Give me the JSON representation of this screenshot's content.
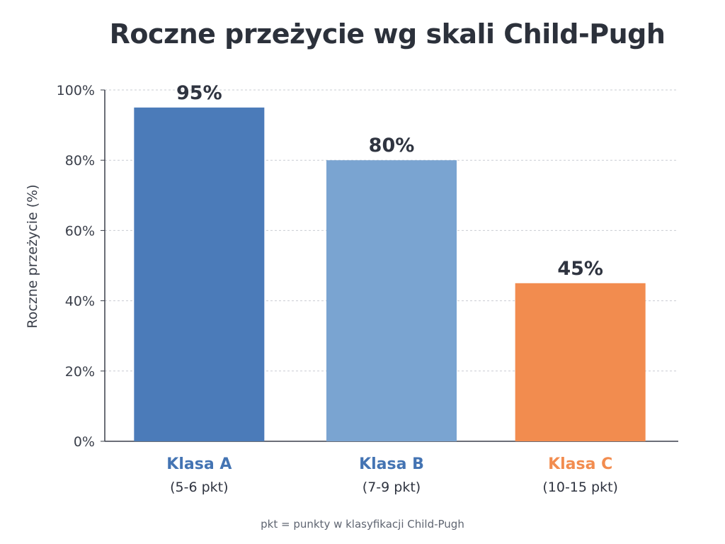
{
  "chart_data": {
    "type": "bar",
    "title": "Roczne przeżycie wg skali Child-Pugh",
    "ylabel": "Roczne przeżycie (%)",
    "xlabel": "",
    "ylim": [
      0,
      100
    ],
    "yticks": [
      0,
      20,
      40,
      60,
      80,
      100
    ],
    "ytick_labels": [
      "0%",
      "20%",
      "40%",
      "60%",
      "80%",
      "100%"
    ],
    "grid": true,
    "categories": [
      {
        "label": "Klasa A",
        "sublabel": "(5-6 pkt)",
        "value": 95,
        "value_label": "95%",
        "color": "#4b7bb9",
        "label_color": "#4474b3"
      },
      {
        "label": "Klasa B",
        "sublabel": "(7-9 pkt)",
        "value": 80,
        "value_label": "80%",
        "color": "#7aa4d1",
        "label_color": "#4474b3"
      },
      {
        "label": "Klasa C",
        "sublabel": "(10-15 pkt)",
        "value": 45,
        "value_label": "45%",
        "color": "#f28c4f",
        "label_color": "#f28c4f"
      }
    ],
    "footnote": "pkt = punkty w klasyfikacji Child-Pugh"
  }
}
